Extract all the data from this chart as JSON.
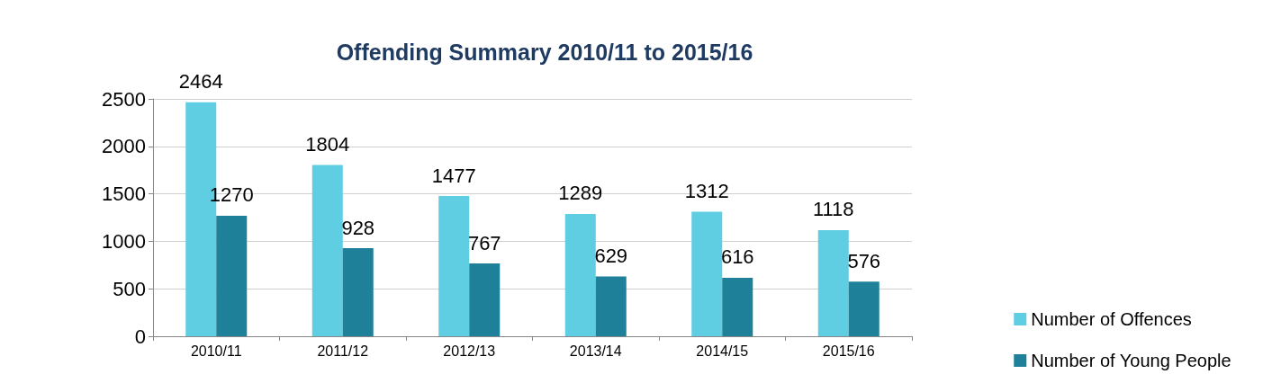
{
  "chart_data": {
    "type": "bar",
    "title": "Offending Summary 2010/11 to 2015/16",
    "categories": [
      "2010/11",
      "2011/12",
      "2012/13",
      "2013/14",
      "2014/15",
      "2015/16"
    ],
    "series": [
      {
        "name": "Number of Offences",
        "color": "#5fcde2",
        "values": [
          2464,
          1804,
          1477,
          1289,
          1312,
          1118
        ]
      },
      {
        "name": "Number of Young People",
        "color": "#1f8199",
        "values": [
          1270,
          928,
          767,
          629,
          616,
          576
        ]
      }
    ],
    "ylim": [
      0,
      2500
    ],
    "yticks": [
      0,
      500,
      1000,
      1500,
      2000,
      2500
    ],
    "grid": "y",
    "legend": "right",
    "data_labels": true
  }
}
